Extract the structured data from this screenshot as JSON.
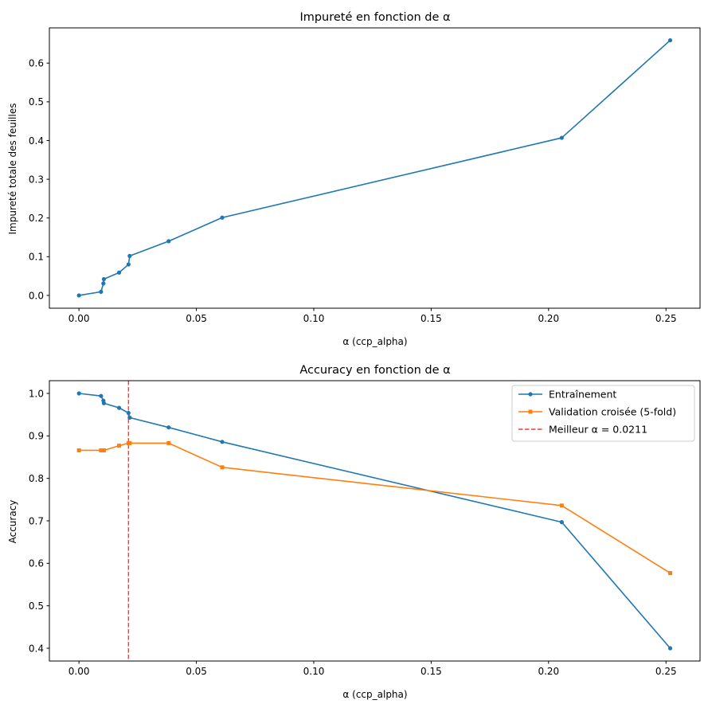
{
  "chart_data": [
    {
      "type": "line",
      "title": "Impureté en fonction de α",
      "xlabel": "α (ccp_alpha)",
      "ylabel": "Impureté totale des feuilles",
      "xlim": [
        -0.0126,
        0.2645
      ],
      "ylim": [
        -0.033,
        0.691
      ],
      "xticks": [
        0,
        0.05,
        0.1,
        0.15,
        0.2,
        0.25
      ],
      "xtick_labels": [
        "0.00",
        "0.05",
        "0.10",
        "0.15",
        "0.20",
        "0.25"
      ],
      "yticks": [
        0,
        0.1,
        0.2,
        0.3,
        0.4,
        0.5,
        0.6
      ],
      "ytick_labels": [
        "0.0",
        "0.1",
        "0.2",
        "0.3",
        "0.4",
        "0.5",
        "0.6"
      ],
      "series": [
        {
          "name": "Impureté",
          "color": "#1f77b4",
          "x": [
            0.0,
            0.0094,
            0.0104,
            0.0106,
            0.0171,
            0.0211,
            0.0216,
            0.0382,
            0.061,
            0.2056,
            0.2518
          ],
          "y": [
            0.0,
            0.0094,
            0.031,
            0.042,
            0.059,
            0.08,
            0.102,
            0.14,
            0.201,
            0.407,
            0.659
          ]
        }
      ]
    },
    {
      "type": "line",
      "title": "Accuracy en fonction de α",
      "xlabel": "α (ccp_alpha)",
      "ylabel": "Accuracy",
      "xlim": [
        -0.0126,
        0.2645
      ],
      "ylim": [
        0.37,
        1.03
      ],
      "xticks": [
        0,
        0.05,
        0.1,
        0.15,
        0.2,
        0.25
      ],
      "xtick_labels": [
        "0.00",
        "0.05",
        "0.10",
        "0.15",
        "0.20",
        "0.25"
      ],
      "yticks": [
        0.4,
        0.5,
        0.6,
        0.7,
        0.8,
        0.9,
        1.0
      ],
      "ytick_labels": [
        "0.4",
        "0.5",
        "0.6",
        "0.7",
        "0.8",
        "0.9",
        "1.0"
      ],
      "legend_position": "top-right",
      "series": [
        {
          "name": "Entraînement",
          "color": "#1f77b4",
          "marker": "circle",
          "x": [
            0.0,
            0.0094,
            0.0104,
            0.0106,
            0.0171,
            0.0211,
            0.0216,
            0.0382,
            0.061,
            0.2056,
            0.2518
          ],
          "y": [
            1.0,
            0.994,
            0.983,
            0.977,
            0.966,
            0.954,
            0.943,
            0.92,
            0.886,
            0.697,
            0.4
          ]
        },
        {
          "name": "Validation croisée (5-fold)",
          "color": "#ff7f0e",
          "marker": "square",
          "x": [
            0.0,
            0.0094,
            0.0104,
            0.0106,
            0.0171,
            0.0211,
            0.0216,
            0.0382,
            0.061,
            0.2056,
            0.2518
          ],
          "y": [
            0.866,
            0.866,
            0.866,
            0.866,
            0.877,
            0.883,
            0.883,
            0.883,
            0.826,
            0.736,
            0.577
          ]
        }
      ],
      "vline": {
        "name": "Meilleur α = 0.0211",
        "x": 0.0211,
        "color": "#ff0000",
        "style": "dashed"
      }
    }
  ]
}
